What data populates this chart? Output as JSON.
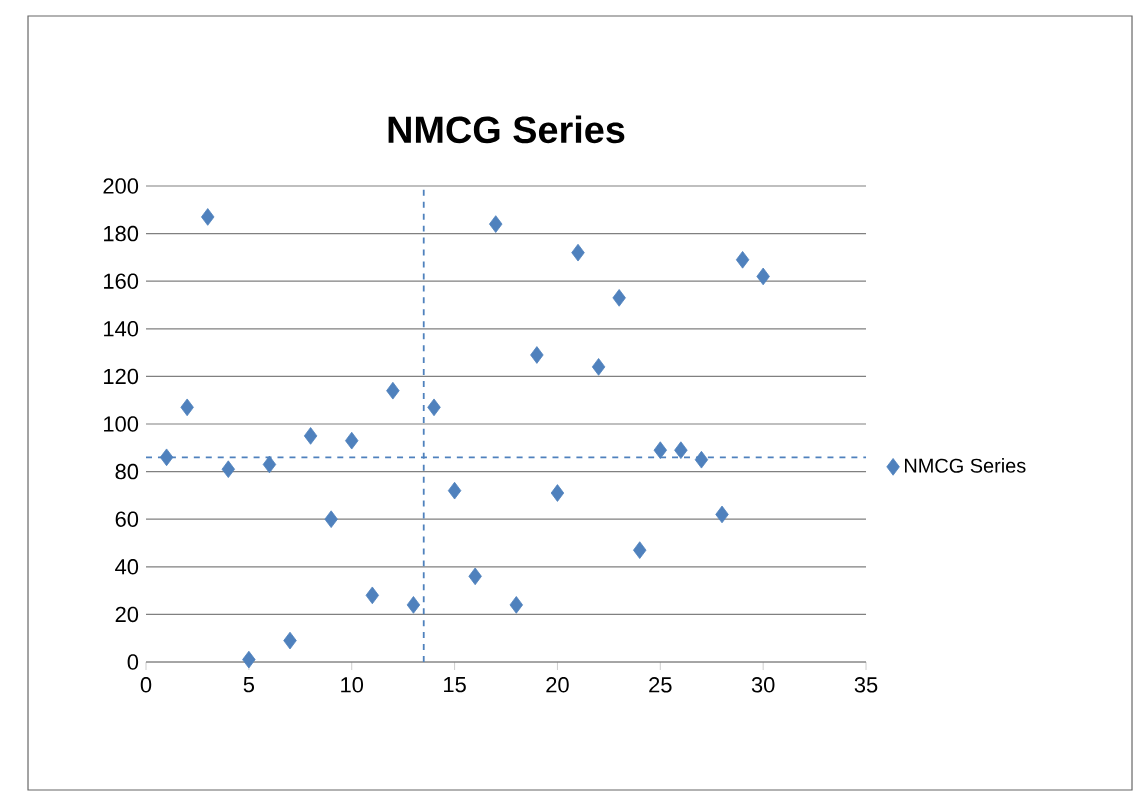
{
  "chart_data": {
    "type": "scatter",
    "title": "NMCG Series",
    "x": [
      1,
      2,
      3,
      4,
      5,
      6,
      7,
      8,
      9,
      10,
      11,
      12,
      13,
      14,
      15,
      16,
      17,
      18,
      19,
      20,
      21,
      22,
      23,
      24,
      25,
      26,
      27,
      28,
      29,
      30
    ],
    "series": [
      {
        "name": "NMCG Series",
        "color": "#4f81bd",
        "values": [
          86,
          107,
          187,
          81,
          1,
          83,
          9,
          95,
          60,
          93,
          28,
          114,
          24,
          107,
          72,
          36,
          184,
          24,
          129,
          71,
          172,
          124,
          153,
          47,
          89,
          89,
          85,
          62,
          169,
          162
        ]
      }
    ],
    "xlim": [
      0,
      35
    ],
    "xticks": [
      0,
      5,
      10,
      15,
      20,
      25,
      30,
      35
    ],
    "ylim": [
      0,
      200
    ],
    "yticks": [
      0,
      20,
      40,
      60,
      80,
      100,
      120,
      140,
      160,
      180,
      200
    ],
    "grid": "y",
    "legend": "right",
    "marker": "diamond",
    "ref_lines": [
      {
        "axis": "x",
        "value": 13.5,
        "color": "#4f81bd",
        "line_style": "dashed"
      },
      {
        "axis": "y",
        "value": 86,
        "color": "#4f81bd",
        "line_style": "dashed"
      }
    ]
  }
}
